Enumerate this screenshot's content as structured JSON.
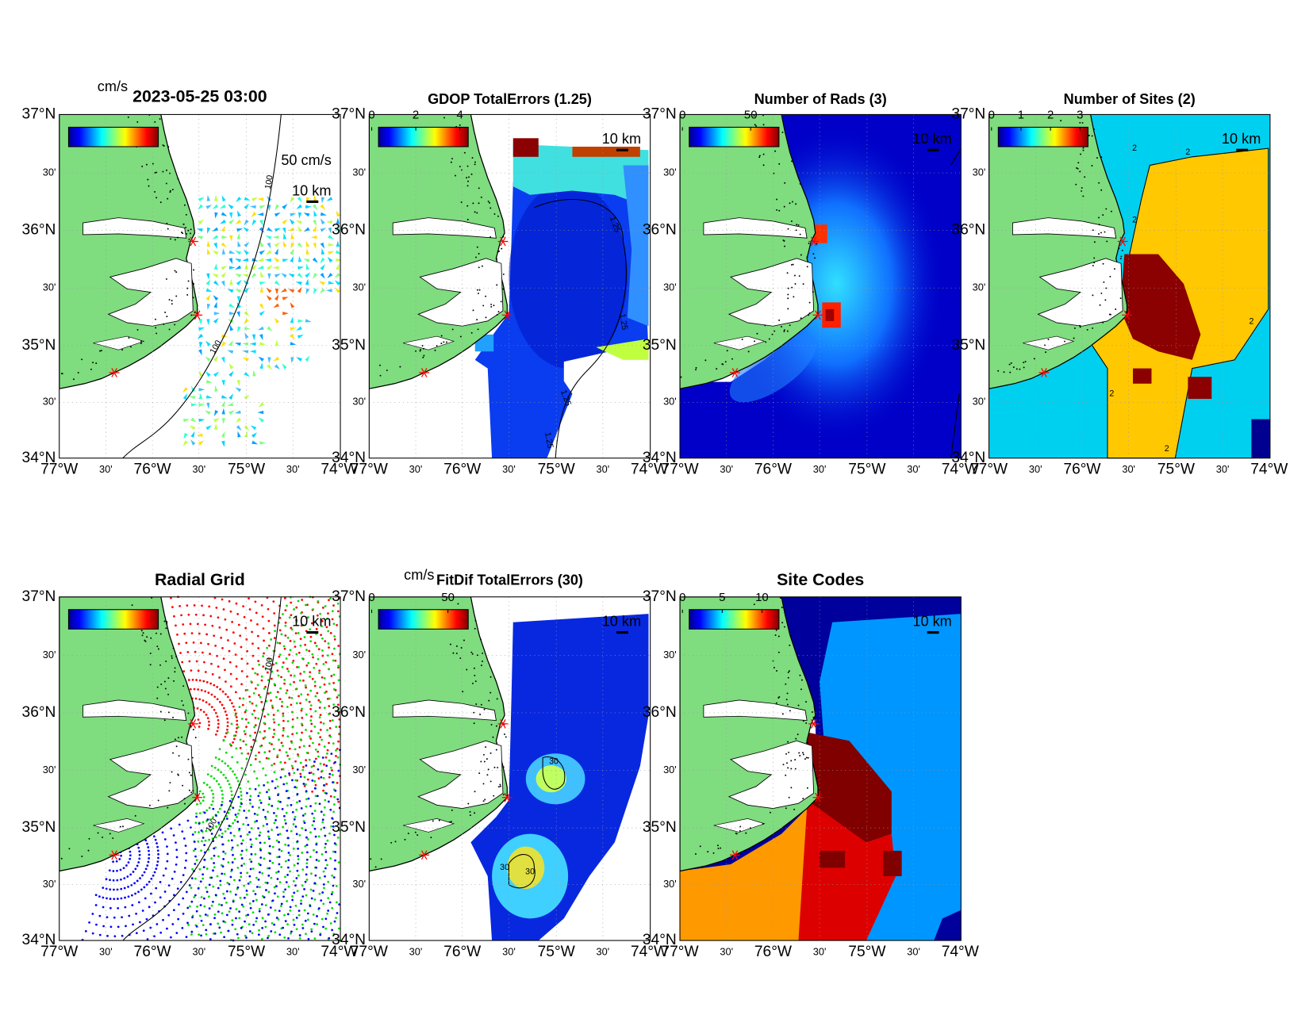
{
  "lat_labels": [
    "37°N",
    "30'",
    "36°N",
    "30'",
    "35°N",
    "30'",
    "34°N"
  ],
  "lon_labels": [
    "77°W",
    "30'",
    "76°W",
    "30'",
    "75°W",
    "30'",
    "74°W"
  ],
  "panels": [
    {
      "title": "2023-05-25 03:00",
      "colorbar_unit": "cm/s",
      "vector_label": "50 cm/s",
      "scale_label": "10 km",
      "contour_labels": [
        "100",
        "100"
      ]
    },
    {
      "title": "GDOP TotalErrors (1.25)",
      "colorbar": {
        "clim": [
          0,
          4.15
        ],
        "ticks": [
          0,
          2,
          4
        ]
      },
      "scale_label": "10 km",
      "contour_labels": [
        "1.25",
        "1.25",
        "1.25",
        "1.25"
      ]
    },
    {
      "title": "Number of Rads (3)",
      "colorbar": {
        "clim": [
          0,
          67
        ],
        "ticks": [
          0,
          50
        ]
      },
      "scale_label": "10 km"
    },
    {
      "title": "Number of Sites (2)",
      "colorbar": {
        "clim": [
          0,
          3.1
        ],
        "ticks": [
          0,
          1,
          2,
          3
        ]
      },
      "scale_label": "10 km",
      "contour_labels": [
        "2",
        "2",
        "2",
        "2",
        "2",
        "2"
      ]
    },
    {
      "title": "Radial Grid",
      "scale_label": "10 km",
      "contour_labels": [
        "100",
        "100"
      ]
    },
    {
      "title": "FitDif TotalErrors (30)",
      "colorbar_unit": "cm/s",
      "colorbar": {
        "clim": [
          0,
          60
        ],
        "ticks": [
          0,
          50
        ]
      },
      "scale_label": "10 km",
      "contour_labels": [
        "30",
        "30",
        "30"
      ]
    },
    {
      "title": "Site Codes",
      "colorbar": {
        "clim": [
          0,
          11.5
        ],
        "ticks": [
          0,
          5,
          10
        ]
      },
      "scale_label": "10 km"
    }
  ]
}
